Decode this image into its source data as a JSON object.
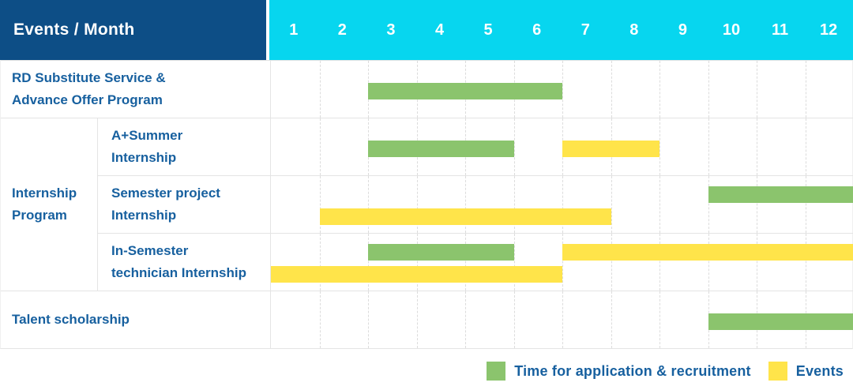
{
  "colors": {
    "header_bg": "#0d4e86",
    "months_bg": "#07d6ef",
    "text_blue": "#17609f",
    "green": "#8bc46d",
    "yellow": "#ffe44a",
    "border": "#e4e4e4",
    "grid_line": "#dcdcdc"
  },
  "header": {
    "title": "Events / Month",
    "months": [
      "1",
      "2",
      "3",
      "4",
      "5",
      "6",
      "7",
      "8",
      "9",
      "10",
      "11",
      "12"
    ]
  },
  "group_label": "Internship\nProgram",
  "rows": [
    {
      "label": "RD Substitute Service &\nAdvance Offer Program",
      "group": false,
      "lanes": [
        [
          {
            "color": "green",
            "start": 3,
            "end": 6
          }
        ]
      ]
    },
    {
      "label": "A+Summer\nInternship",
      "group": true,
      "lanes": [
        [
          {
            "color": "green",
            "start": 3,
            "end": 5
          },
          {
            "color": "yellow",
            "start": 7,
            "end": 8
          }
        ]
      ]
    },
    {
      "label": "Semester project\nInternship",
      "group": true,
      "lanes": [
        [
          {
            "color": "green",
            "start": 10,
            "end": 12
          }
        ],
        [
          {
            "color": "yellow",
            "start": 2,
            "end": 7
          }
        ]
      ]
    },
    {
      "label": "In-Semester\ntechnician Internship",
      "group": true,
      "lanes": [
        [
          {
            "color": "green",
            "start": 3,
            "end": 5
          },
          {
            "color": "yellow",
            "start": 7,
            "end": 12
          }
        ],
        [
          {
            "color": "yellow",
            "start": 1,
            "end": 6
          }
        ]
      ]
    },
    {
      "label": "Talent scholarship",
      "group": false,
      "lanes": [
        [
          {
            "color": "green",
            "start": 10,
            "end": 12
          }
        ]
      ]
    }
  ],
  "legend": [
    {
      "swatch": "green",
      "label": "Time for application & recruitment"
    },
    {
      "swatch": "yellow",
      "label": "Events"
    }
  ],
  "chart_data": {
    "type": "bar",
    "subtype": "gantt",
    "title": "Events / Month",
    "x_axis": {
      "label": "Month",
      "ticks": [
        1,
        2,
        3,
        4,
        5,
        6,
        7,
        8,
        9,
        10,
        11,
        12
      ],
      "range": [
        1,
        12
      ]
    },
    "grid": true,
    "legend_position": "bottom-right",
    "series_colors": {
      "Time for application & recruitment": "#8bc46d",
      "Events": "#ffe44a"
    },
    "tasks": [
      {
        "row": "RD Substitute Service & Advance Offer Program",
        "group": null,
        "series": "Time for application & recruitment",
        "start_month": 3,
        "end_month": 6
      },
      {
        "row": "A+Summer Internship",
        "group": "Internship Program",
        "series": "Time for application & recruitment",
        "start_month": 3,
        "end_month": 5
      },
      {
        "row": "A+Summer Internship",
        "group": "Internship Program",
        "series": "Events",
        "start_month": 7,
        "end_month": 8
      },
      {
        "row": "Semester project Internship",
        "group": "Internship Program",
        "series": "Time for application & recruitment",
        "start_month": 10,
        "end_month": 12
      },
      {
        "row": "Semester project Internship",
        "group": "Internship Program",
        "series": "Events",
        "start_month": 2,
        "end_month": 7
      },
      {
        "row": "In-Semester technician Internship",
        "group": "Internship Program",
        "series": "Time for application & recruitment",
        "start_month": 3,
        "end_month": 5
      },
      {
        "row": "In-Semester technician Internship",
        "group": "Internship Program",
        "series": "Events",
        "start_month": 7,
        "end_month": 12
      },
      {
        "row": "In-Semester technician Internship",
        "group": "Internship Program",
        "series": "Events",
        "start_month": 1,
        "end_month": 6
      },
      {
        "row": "Talent scholarship",
        "group": null,
        "series": "Time for application & recruitment",
        "start_month": 10,
        "end_month": 12
      }
    ],
    "legend_entries": [
      "Time for application & recruitment",
      "Events"
    ]
  }
}
